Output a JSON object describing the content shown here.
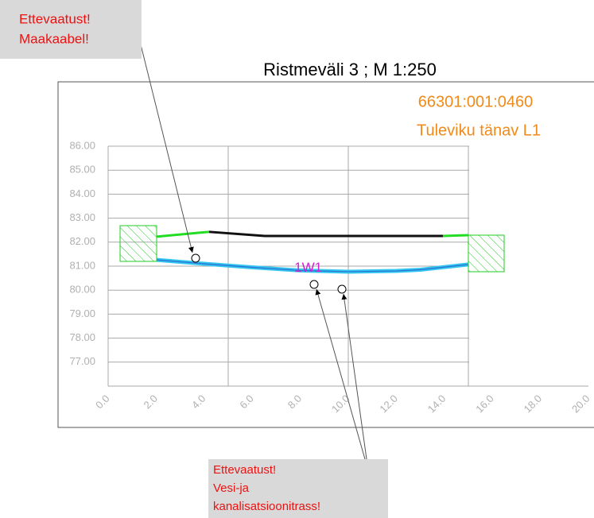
{
  "chart_data": {
    "type": "profile",
    "title": "Ristmeväli 3 ; M 1:250",
    "subtitle": [
      "66301:001:0460",
      "Tuleviku tänav L1"
    ],
    "xlim": [
      0,
      20
    ],
    "ylim": [
      76,
      86
    ],
    "xticks": [
      {
        "value": 0,
        "label": "0.0"
      },
      {
        "value": 2,
        "label": "2.0"
      },
      {
        "value": 4,
        "label": "4.0"
      },
      {
        "value": 6,
        "label": "6.0"
      },
      {
        "value": 8,
        "label": "8.0"
      },
      {
        "value": 10,
        "label": "10.0"
      },
      {
        "value": 12,
        "label": "12.0"
      },
      {
        "value": 14,
        "label": "14.0"
      },
      {
        "value": 16,
        "label": "16.0"
      },
      {
        "value": 18,
        "label": "18.0"
      },
      {
        "value": 20,
        "label": "20.0"
      }
    ],
    "yticks": [
      {
        "value": 86,
        "label": "86.00"
      },
      {
        "value": 85,
        "label": "85.00"
      },
      {
        "value": 84,
        "label": "84.00"
      },
      {
        "value": 83,
        "label": "83.00"
      },
      {
        "value": 82,
        "label": "82.00"
      },
      {
        "value": 81,
        "label": "81.00"
      },
      {
        "value": 80,
        "label": "80.00"
      },
      {
        "value": 79,
        "label": "79.00"
      },
      {
        "value": 78,
        "label": "78.00"
      },
      {
        "value": 77,
        "label": "77.00"
      }
    ],
    "xgrid": [
      5,
      10,
      15
    ],
    "series": [
      {
        "color": "#22dd22",
        "x": [
          2.02,
          4.2
        ],
        "values": [
          82.23,
          82.43
        ]
      },
      {
        "color": "#111111",
        "x": [
          4.2,
          6.52,
          13.94
        ],
        "values": [
          82.43,
          82.26,
          82.26
        ]
      },
      {
        "name": "1W1",
        "color": "#33c6f0",
        "x": [
          2.02,
          4,
          6,
          8,
          10,
          12,
          13,
          15
        ],
        "values": [
          81.26,
          81.1,
          80.95,
          80.82,
          80.77,
          80.8,
          80.85,
          81.07
        ]
      },
      {
        "color": "#22dd22",
        "x": [
          13.94,
          15
        ],
        "values": [
          82.26,
          82.29
        ]
      }
    ],
    "annotations": [
      {
        "lines": [
          "Ettevaatust!",
          "Maakaabel!"
        ]
      },
      {
        "lines": [
          "Ettevaatust!",
          "Vesi-ja",
          "kanalisatsioonitrass!"
        ]
      }
    ]
  }
}
